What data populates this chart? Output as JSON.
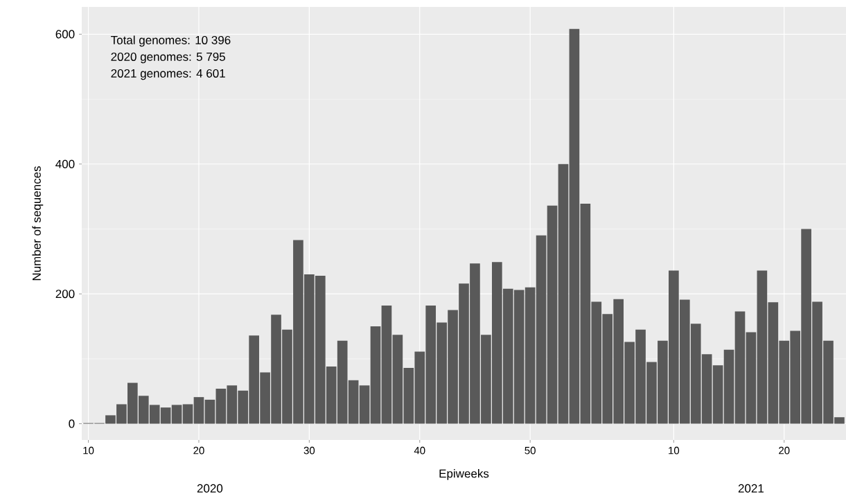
{
  "chart_data": {
    "type": "bar",
    "categories": [
      "10",
      null,
      null,
      null,
      null,
      null,
      null,
      null,
      null,
      null,
      "20",
      null,
      null,
      null,
      null,
      null,
      null,
      null,
      null,
      null,
      "30",
      null,
      null,
      null,
      null,
      null,
      null,
      null,
      null,
      null,
      "40",
      null,
      null,
      null,
      null,
      null,
      null,
      null,
      null,
      null,
      "50",
      null,
      null,
      null,
      null,
      null,
      null,
      null,
      null,
      null,
      null,
      null,
      null,
      "10",
      null,
      null,
      null,
      null,
      null,
      null,
      null,
      null,
      null,
      "20",
      null,
      null,
      null,
      null,
      null
    ],
    "values": [
      1,
      1,
      13,
      30,
      63,
      43,
      29,
      25,
      29,
      30,
      41,
      37,
      54,
      59,
      51,
      136,
      79,
      168,
      145,
      283,
      230,
      228,
      88,
      128,
      67,
      59,
      150,
      182,
      137,
      86,
      111,
      182,
      156,
      175,
      216,
      247,
      137,
      249,
      208,
      206,
      210,
      290,
      336,
      400,
      608,
      339,
      188,
      169,
      192,
      126,
      145,
      95,
      128,
      236,
      191,
      154,
      107,
      90,
      114,
      173,
      141,
      236,
      187,
      128,
      143,
      300,
      188,
      128,
      10
    ],
    "color": "#595959",
    "xlabel": "Epiweeks",
    "ylabel": "Number of sequences",
    "ylim": [
      -25,
      642
    ],
    "yticks": [
      0,
      200,
      400,
      600
    ],
    "grid": true,
    "annotations": [
      "Total genomes: 10 396",
      "2020 genomes: 5 795",
      "2021 genomes: 4 601",
      "2020",
      "2021"
    ]
  }
}
